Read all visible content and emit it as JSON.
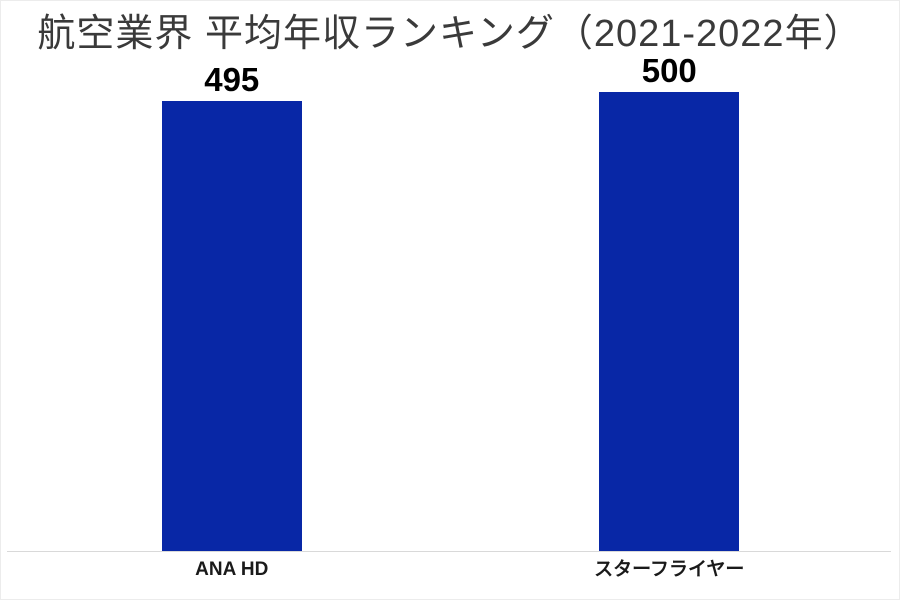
{
  "page": {
    "background": "#ffffff",
    "border_color": "#ececec"
  },
  "chart_data": {
    "type": "bar",
    "title": "航空業界 平均年収ランキング（2021-2022年）",
    "categories": [
      "ANA HD",
      "スターフライヤー"
    ],
    "values": [
      495,
      500
    ],
    "ylim": [
      400,
      505
    ],
    "bar_color": "#0827a6",
    "title_color": "#3a3a3a",
    "value_label_color": "#000000",
    "category_label_color": "#1a1a1a",
    "axis_line_color": "#d9d9d9",
    "grid": "off",
    "legend": "none",
    "value_axis_visible": false
  }
}
